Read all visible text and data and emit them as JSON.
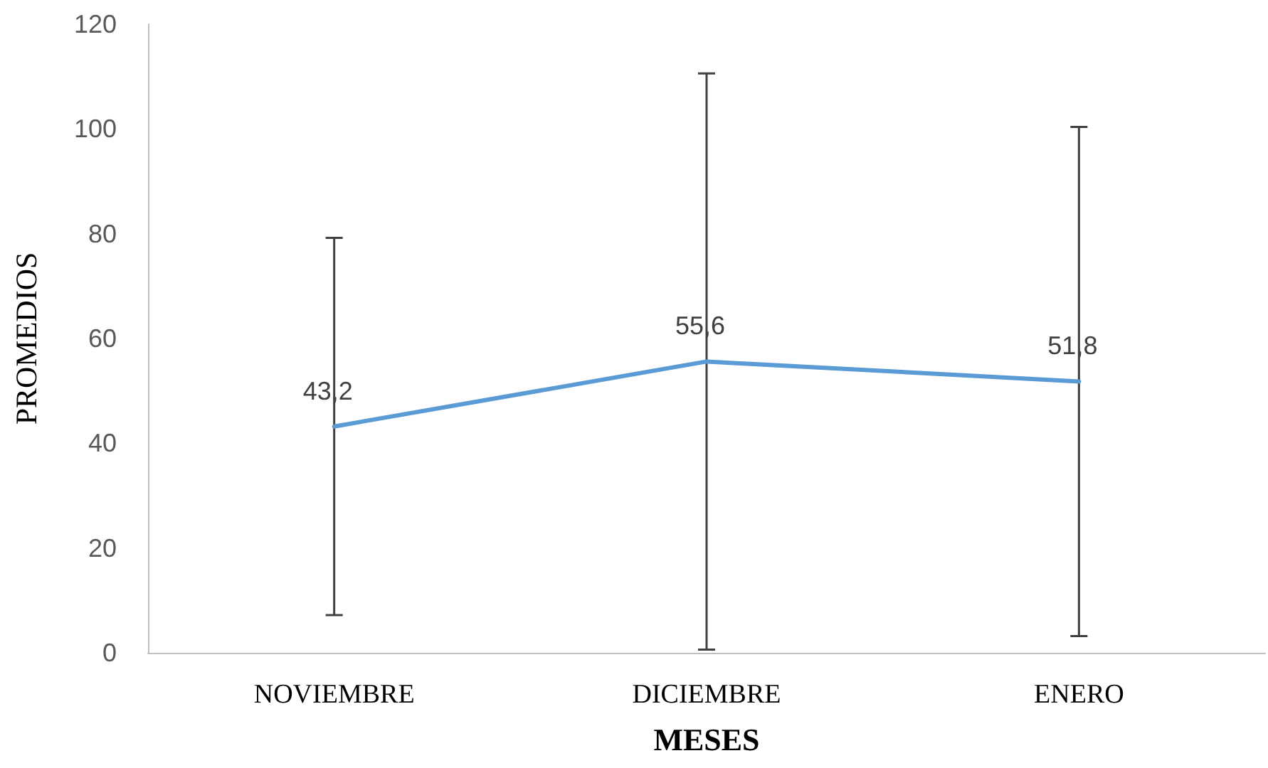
{
  "chart_data": {
    "type": "line",
    "xlabel": "MESES",
    "ylabel": "PROMEDIOS",
    "categories": [
      "NOVIEMBRE",
      "DICIEMBRE",
      "ENERO"
    ],
    "series": [
      {
        "color": "#5b9bd5",
        "values": [
          43.2,
          55.6,
          51.8
        ],
        "errors": [
          36,
          55,
          48.6
        ],
        "value_labels": [
          "43,2",
          "55,6",
          "51,8"
        ]
      }
    ],
    "ylim": [
      0,
      120
    ],
    "yticks": [
      0,
      20,
      40,
      60,
      80,
      100,
      120
    ],
    "grid": false,
    "marker": "none",
    "line_style": "solid"
  }
}
